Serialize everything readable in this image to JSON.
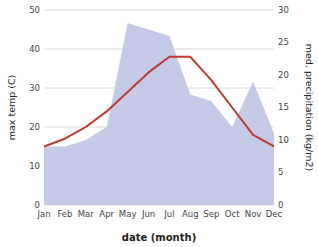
{
  "chart_data": {
    "type": "line",
    "xlabel": "date (month)",
    "ylabel": "max temp (C)",
    "y2label": "med. precipitation (kg/m2)",
    "categories": [
      "Jan",
      "Feb",
      "Mar",
      "Apr",
      "May",
      "Jun",
      "Jul",
      "Aug",
      "Sep",
      "Oct",
      "Nov",
      "Dec"
    ],
    "series": [
      {
        "type": "area",
        "axis": "y2",
        "color": "#c5cae9",
        "values": [
          9,
          9,
          10,
          12,
          28,
          27,
          26,
          17,
          16,
          12,
          19,
          11
        ]
      },
      {
        "type": "line",
        "color": "#c0392b",
        "values": [
          15,
          17,
          20,
          24,
          29,
          34,
          38,
          38,
          32,
          25,
          18,
          15
        ]
      }
    ],
    "ylim": [
      0,
      50
    ],
    "yticks": [
      0,
      10,
      20,
      30,
      40,
      50
    ],
    "y2lim": [
      0,
      30
    ],
    "y2ticks": [
      0,
      5,
      10,
      15,
      20,
      25,
      30
    ],
    "grid": true
  }
}
